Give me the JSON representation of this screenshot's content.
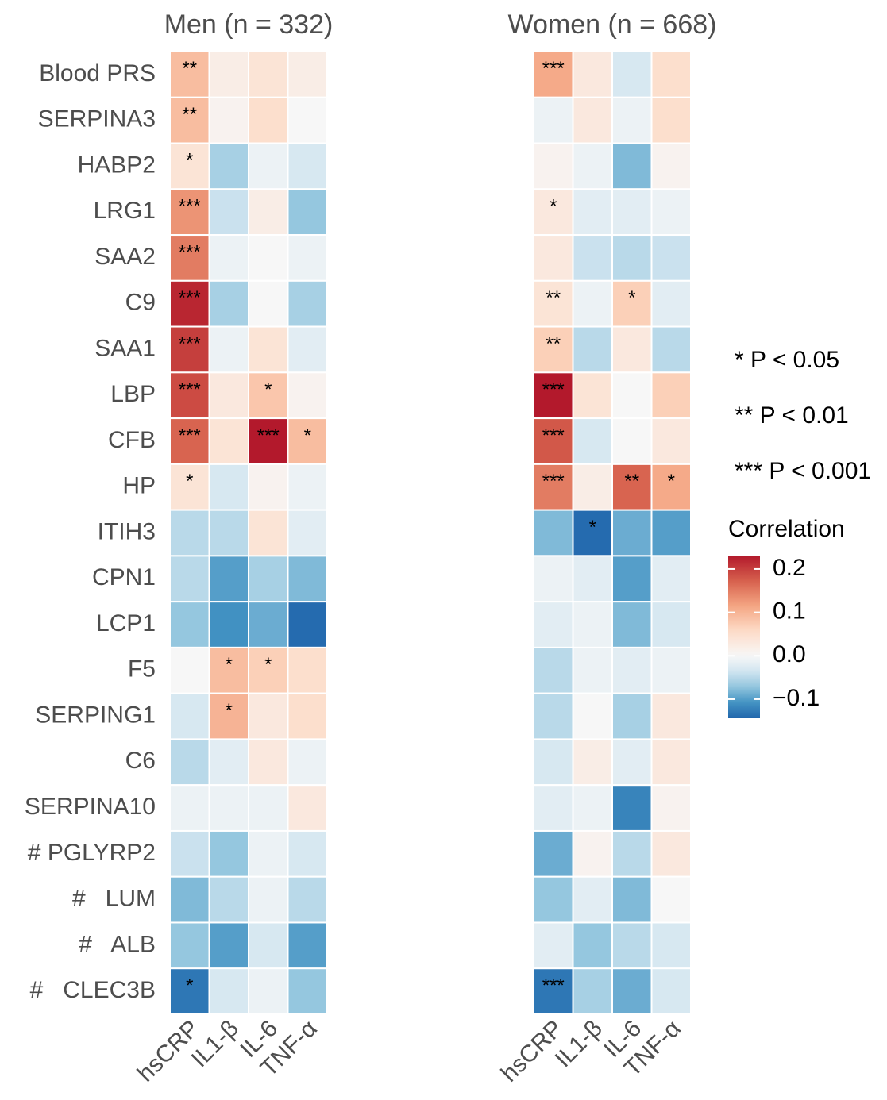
{
  "chart_data": [
    {
      "type": "heatmap",
      "title": "Men (n = 332)",
      "rows": [
        "Blood PRS",
        "SERPINA3",
        "HABP2",
        "LRG1",
        "SAA2",
        "C9",
        "SAA1",
        "LBP",
        "CFB",
        "HP",
        "ITIH3",
        "CPN1",
        "LCP1",
        "F5",
        "SERPING1",
        "C6",
        "SERPINA10",
        "# PGLYRP2",
        "#   LUM",
        "#   ALB",
        "#   CLEC3B"
      ],
      "columns": [
        "hsCRP",
        "IL1-β",
        "IL-6",
        "TNF-α"
      ],
      "values": [
        [
          0.09,
          0.02,
          0.04,
          0.02
        ],
        [
          0.09,
          0.01,
          0.05,
          0.0
        ],
        [
          0.04,
          -0.06,
          -0.01,
          -0.03
        ],
        [
          0.13,
          -0.04,
          0.02,
          -0.07
        ],
        [
          0.15,
          -0.01,
          0.0,
          -0.01
        ],
        [
          0.22,
          -0.06,
          0.0,
          -0.06
        ],
        [
          0.2,
          -0.01,
          0.04,
          -0.02
        ],
        [
          0.19,
          0.03,
          0.08,
          0.01
        ],
        [
          0.17,
          0.04,
          0.23,
          0.09
        ],
        [
          0.04,
          -0.03,
          0.01,
          -0.01
        ],
        [
          -0.05,
          -0.05,
          0.04,
          -0.02
        ],
        [
          -0.05,
          -0.1,
          -0.06,
          -0.08
        ],
        [
          -0.07,
          -0.11,
          -0.09,
          -0.14
        ],
        [
          0.0,
          0.09,
          0.07,
          0.05
        ],
        [
          -0.03,
          0.1,
          0.03,
          0.05
        ],
        [
          -0.05,
          -0.02,
          0.03,
          -0.01
        ],
        [
          -0.01,
          -0.01,
          -0.01,
          0.03
        ],
        [
          -0.04,
          -0.07,
          -0.01,
          -0.03
        ],
        [
          -0.08,
          -0.05,
          -0.01,
          -0.05
        ],
        [
          -0.07,
          -0.1,
          -0.03,
          -0.1
        ],
        [
          -0.13,
          -0.03,
          -0.01,
          -0.07
        ]
      ],
      "annotations": [
        [
          "**",
          null,
          null,
          null
        ],
        [
          "**",
          null,
          null,
          null
        ],
        [
          "*",
          null,
          null,
          null
        ],
        [
          "***",
          null,
          null,
          null
        ],
        [
          "***",
          null,
          null,
          null
        ],
        [
          "***",
          null,
          null,
          null
        ],
        [
          "***",
          null,
          null,
          null
        ],
        [
          "***",
          null,
          "*",
          null
        ],
        [
          "***",
          null,
          "***",
          "*"
        ],
        [
          "*",
          null,
          null,
          null
        ],
        [
          null,
          null,
          null,
          null
        ],
        [
          null,
          null,
          null,
          null
        ],
        [
          null,
          null,
          null,
          null
        ],
        [
          null,
          "*",
          "*",
          null
        ],
        [
          null,
          "*",
          null,
          null
        ],
        [
          null,
          null,
          null,
          null
        ],
        [
          null,
          null,
          null,
          null
        ],
        [
          null,
          null,
          null,
          null
        ],
        [
          null,
          null,
          null,
          null
        ],
        [
          null,
          null,
          null,
          null
        ],
        [
          "*",
          null,
          null,
          null
        ]
      ]
    },
    {
      "type": "heatmap",
      "title": "Women (n = 668)",
      "columns": [
        "hsCRP",
        "IL1-β",
        "IL-6",
        "TNF-α"
      ],
      "values": [
        [
          0.11,
          0.03,
          -0.03,
          0.05
        ],
        [
          -0.01,
          0.03,
          -0.01,
          0.05
        ],
        [
          0.01,
          -0.01,
          -0.08,
          0.01
        ],
        [
          0.03,
          -0.02,
          -0.02,
          -0.01
        ],
        [
          0.03,
          -0.04,
          -0.05,
          -0.04
        ],
        [
          0.04,
          -0.01,
          0.07,
          -0.02
        ],
        [
          0.07,
          -0.05,
          0.03,
          -0.05
        ],
        [
          0.23,
          0.04,
          0.0,
          0.07
        ],
        [
          0.18,
          -0.03,
          0.0,
          0.03
        ],
        [
          0.15,
          0.02,
          0.17,
          0.11
        ],
        [
          -0.08,
          -0.14,
          -0.09,
          -0.1
        ],
        [
          -0.01,
          -0.02,
          -0.1,
          -0.02
        ],
        [
          -0.02,
          -0.01,
          -0.08,
          -0.03
        ],
        [
          -0.05,
          -0.01,
          -0.02,
          -0.01
        ],
        [
          -0.05,
          0.0,
          -0.06,
          0.03
        ],
        [
          -0.03,
          0.02,
          -0.02,
          0.03
        ],
        [
          -0.02,
          -0.01,
          -0.12,
          0.01
        ],
        [
          -0.09,
          0.01,
          -0.05,
          0.03
        ],
        [
          -0.07,
          -0.02,
          -0.08,
          0.0
        ],
        [
          -0.02,
          -0.07,
          -0.05,
          -0.03
        ],
        [
          -0.13,
          -0.06,
          -0.09,
          -0.03
        ]
      ],
      "annotations": [
        [
          "***",
          null,
          null,
          null
        ],
        [
          null,
          null,
          null,
          null
        ],
        [
          null,
          null,
          null,
          null
        ],
        [
          "*",
          null,
          null,
          null
        ],
        [
          null,
          null,
          null,
          null
        ],
        [
          "**",
          null,
          "*",
          null
        ],
        [
          "**",
          null,
          null,
          null
        ],
        [
          "***",
          null,
          null,
          null
        ],
        [
          "***",
          null,
          null,
          null
        ],
        [
          "***",
          null,
          "**",
          "*"
        ],
        [
          null,
          "*",
          null,
          null
        ],
        [
          null,
          null,
          null,
          null
        ],
        [
          null,
          null,
          null,
          null
        ],
        [
          null,
          null,
          null,
          null
        ],
        [
          null,
          null,
          null,
          null
        ],
        [
          null,
          null,
          null,
          null
        ],
        [
          null,
          null,
          null,
          null
        ],
        [
          null,
          null,
          null,
          null
        ],
        [
          null,
          null,
          null,
          null
        ],
        [
          null,
          null,
          null,
          null
        ],
        [
          "***",
          null,
          null,
          null
        ]
      ]
    }
  ],
  "legend": {
    "title": "Correlation",
    "zlim": [
      -0.144,
      0.231
    ],
    "ticks": [
      0.2,
      0.1,
      {
        "value": 0,
        "label": "0.0"
      },
      {
        "value": -0.1,
        "label": "−0.1"
      }
    ],
    "colors_high": [
      "#f7f7f7",
      "#fddbc7",
      "#f4a582",
      "#d6604d",
      "#b2182b"
    ],
    "colors_low": [
      "#f7f7f7",
      "#d1e5f0",
      "#92c5de",
      "#4393c3",
      "#2166ac"
    ]
  },
  "significance_notes": [
    "* P < 0.05",
    "** P < 0.01",
    "*** P < 0.001"
  ]
}
